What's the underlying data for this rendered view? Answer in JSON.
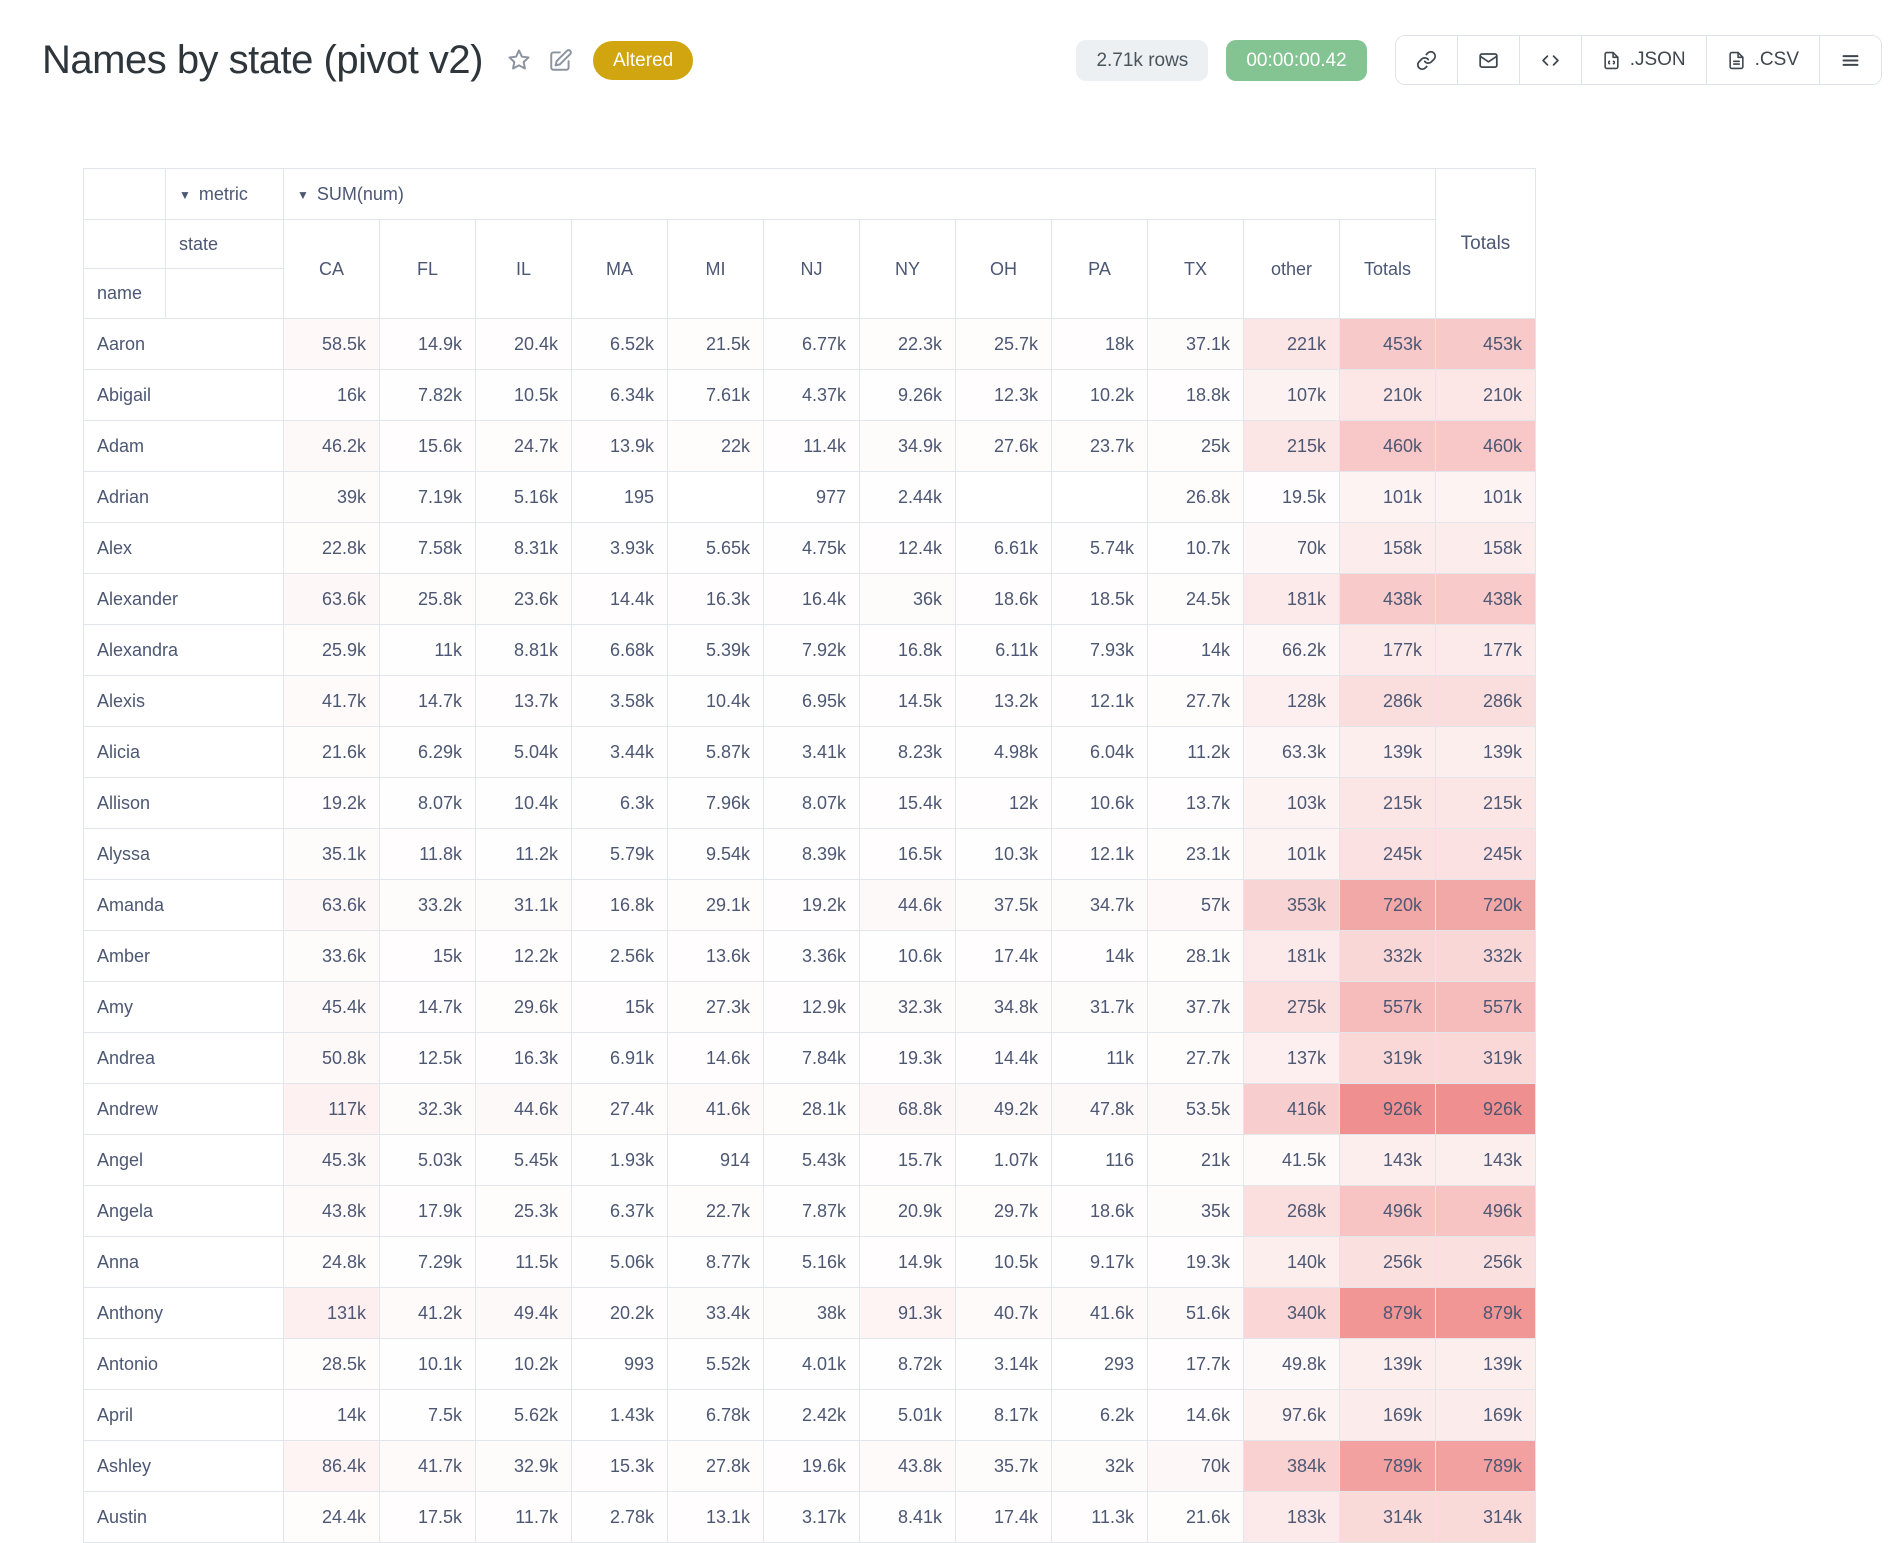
{
  "header": {
    "title": "Names by state (pivot v2)",
    "altered_badge": "Altered",
    "rows_badge": "2.71k rows",
    "timer_badge": "00:00:00.42",
    "json_button": ".JSON",
    "csv_button": ".CSV"
  },
  "colors": {
    "altered_bg": "#d0a50f",
    "timer_bg": "#84c392",
    "heatmap": "#ec7070",
    "border": "#e2e6ea",
    "text": "#4c5773"
  },
  "pivot": {
    "metric_label": "metric",
    "metric_value": "SUM(num)",
    "state_label": "state",
    "name_label": "name",
    "totals_label": "Totals",
    "columns": [
      "CA",
      "FL",
      "IL",
      "MA",
      "MI",
      "NJ",
      "NY",
      "OH",
      "PA",
      "TX",
      "other",
      "Totals"
    ],
    "rows": [
      {
        "name": "Aaron",
        "values": [
          "58.5k",
          "14.9k",
          "20.4k",
          "6.52k",
          "21.5k",
          "6.77k",
          "22.3k",
          "25.7k",
          "18k",
          "37.1k",
          "221k",
          "453k"
        ],
        "total": "453k"
      },
      {
        "name": "Abigail",
        "values": [
          "16k",
          "7.82k",
          "10.5k",
          "6.34k",
          "7.61k",
          "4.37k",
          "9.26k",
          "12.3k",
          "10.2k",
          "18.8k",
          "107k",
          "210k"
        ],
        "total": "210k"
      },
      {
        "name": "Adam",
        "values": [
          "46.2k",
          "15.6k",
          "24.7k",
          "13.9k",
          "22k",
          "11.4k",
          "34.9k",
          "27.6k",
          "23.7k",
          "25k",
          "215k",
          "460k"
        ],
        "total": "460k"
      },
      {
        "name": "Adrian",
        "values": [
          "39k",
          "7.19k",
          "5.16k",
          "195",
          "",
          "977",
          "2.44k",
          "",
          "",
          "26.8k",
          "19.5k",
          "101k"
        ],
        "total": "101k"
      },
      {
        "name": "Alex",
        "values": [
          "22.8k",
          "7.58k",
          "8.31k",
          "3.93k",
          "5.65k",
          "4.75k",
          "12.4k",
          "6.61k",
          "5.74k",
          "10.7k",
          "70k",
          "158k"
        ],
        "total": "158k"
      },
      {
        "name": "Alexander",
        "values": [
          "63.6k",
          "25.8k",
          "23.6k",
          "14.4k",
          "16.3k",
          "16.4k",
          "36k",
          "18.6k",
          "18.5k",
          "24.5k",
          "181k",
          "438k"
        ],
        "total": "438k"
      },
      {
        "name": "Alexandra",
        "values": [
          "25.9k",
          "11k",
          "8.81k",
          "6.68k",
          "5.39k",
          "7.92k",
          "16.8k",
          "6.11k",
          "7.93k",
          "14k",
          "66.2k",
          "177k"
        ],
        "total": "177k"
      },
      {
        "name": "Alexis",
        "values": [
          "41.7k",
          "14.7k",
          "13.7k",
          "3.58k",
          "10.4k",
          "6.95k",
          "14.5k",
          "13.2k",
          "12.1k",
          "27.7k",
          "128k",
          "286k"
        ],
        "total": "286k"
      },
      {
        "name": "Alicia",
        "values": [
          "21.6k",
          "6.29k",
          "5.04k",
          "3.44k",
          "5.87k",
          "3.41k",
          "8.23k",
          "4.98k",
          "6.04k",
          "11.2k",
          "63.3k",
          "139k"
        ],
        "total": "139k"
      },
      {
        "name": "Allison",
        "values": [
          "19.2k",
          "8.07k",
          "10.4k",
          "6.3k",
          "7.96k",
          "8.07k",
          "15.4k",
          "12k",
          "10.6k",
          "13.7k",
          "103k",
          "215k"
        ],
        "total": "215k"
      },
      {
        "name": "Alyssa",
        "values": [
          "35.1k",
          "11.8k",
          "11.2k",
          "5.79k",
          "9.54k",
          "8.39k",
          "16.5k",
          "10.3k",
          "12.1k",
          "23.1k",
          "101k",
          "245k"
        ],
        "total": "245k"
      },
      {
        "name": "Amanda",
        "values": [
          "63.6k",
          "33.2k",
          "31.1k",
          "16.8k",
          "29.1k",
          "19.2k",
          "44.6k",
          "37.5k",
          "34.7k",
          "57k",
          "353k",
          "720k"
        ],
        "total": "720k"
      },
      {
        "name": "Amber",
        "values": [
          "33.6k",
          "15k",
          "12.2k",
          "2.56k",
          "13.6k",
          "3.36k",
          "10.6k",
          "17.4k",
          "14k",
          "28.1k",
          "181k",
          "332k"
        ],
        "total": "332k"
      },
      {
        "name": "Amy",
        "values": [
          "45.4k",
          "14.7k",
          "29.6k",
          "15k",
          "27.3k",
          "12.9k",
          "32.3k",
          "34.8k",
          "31.7k",
          "37.7k",
          "275k",
          "557k"
        ],
        "total": "557k"
      },
      {
        "name": "Andrea",
        "values": [
          "50.8k",
          "12.5k",
          "16.3k",
          "6.91k",
          "14.6k",
          "7.84k",
          "19.3k",
          "14.4k",
          "11k",
          "27.7k",
          "137k",
          "319k"
        ],
        "total": "319k"
      },
      {
        "name": "Andrew",
        "values": [
          "117k",
          "32.3k",
          "44.6k",
          "27.4k",
          "41.6k",
          "28.1k",
          "68.8k",
          "49.2k",
          "47.8k",
          "53.5k",
          "416k",
          "926k"
        ],
        "total": "926k"
      },
      {
        "name": "Angel",
        "values": [
          "45.3k",
          "5.03k",
          "5.45k",
          "1.93k",
          "914",
          "5.43k",
          "15.7k",
          "1.07k",
          "116",
          "21k",
          "41.5k",
          "143k"
        ],
        "total": "143k"
      },
      {
        "name": "Angela",
        "values": [
          "43.8k",
          "17.9k",
          "25.3k",
          "6.37k",
          "22.7k",
          "7.87k",
          "20.9k",
          "29.7k",
          "18.6k",
          "35k",
          "268k",
          "496k"
        ],
        "total": "496k"
      },
      {
        "name": "Anna",
        "values": [
          "24.8k",
          "7.29k",
          "11.5k",
          "5.06k",
          "8.77k",
          "5.16k",
          "14.9k",
          "10.5k",
          "9.17k",
          "19.3k",
          "140k",
          "256k"
        ],
        "total": "256k"
      },
      {
        "name": "Anthony",
        "values": [
          "131k",
          "41.2k",
          "49.4k",
          "20.2k",
          "33.4k",
          "38k",
          "91.3k",
          "40.7k",
          "41.6k",
          "51.6k",
          "340k",
          "879k"
        ],
        "total": "879k"
      },
      {
        "name": "Antonio",
        "values": [
          "28.5k",
          "10.1k",
          "10.2k",
          "993",
          "5.52k",
          "4.01k",
          "8.72k",
          "3.14k",
          "293",
          "17.7k",
          "49.8k",
          "139k"
        ],
        "total": "139k"
      },
      {
        "name": "April",
        "values": [
          "14k",
          "7.5k",
          "5.62k",
          "1.43k",
          "6.78k",
          "2.42k",
          "5.01k",
          "8.17k",
          "6.2k",
          "14.6k",
          "97.6k",
          "169k"
        ],
        "total": "169k"
      },
      {
        "name": "Ashley",
        "values": [
          "86.4k",
          "41.7k",
          "32.9k",
          "15.3k",
          "27.8k",
          "19.6k",
          "43.8k",
          "35.7k",
          "32k",
          "70k",
          "384k",
          "789k"
        ],
        "total": "789k"
      },
      {
        "name": "Austin",
        "values": [
          "24.4k",
          "17.5k",
          "11.7k",
          "2.78k",
          "13.1k",
          "3.17k",
          "8.41k",
          "17.4k",
          "11.3k",
          "21.6k",
          "183k",
          "314k"
        ],
        "total": "314k"
      }
    ]
  }
}
